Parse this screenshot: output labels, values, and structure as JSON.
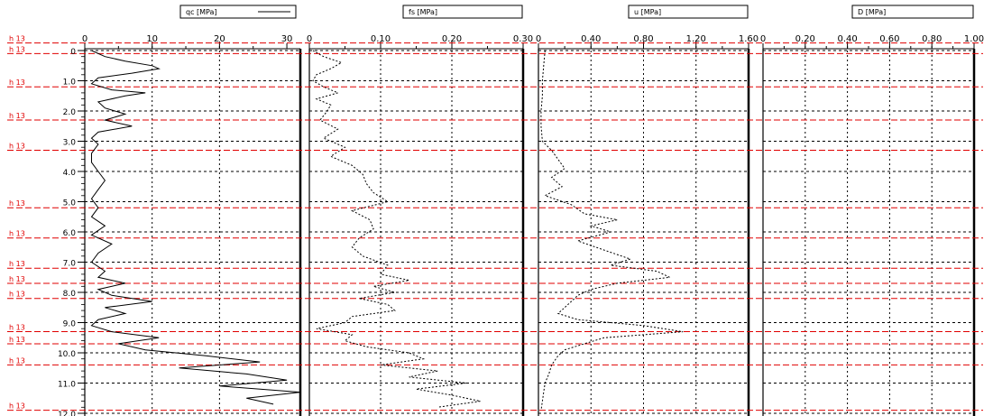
{
  "chart_data": {
    "type": "line",
    "depth_axis": {
      "label": "",
      "range": [
        0,
        12.0
      ],
      "ticks": [
        "0",
        "1.0",
        "2.0",
        "3.0",
        "4.0",
        "5.0",
        "6.0",
        "7.0",
        "8.0",
        "9.0",
        "10.0",
        "11.0",
        "12.0"
      ]
    },
    "grid": true,
    "panels": [
      {
        "name": "qc",
        "legend": "qc [MPa]",
        "xlim": [
          0,
          32
        ],
        "tick_labels": [
          "0",
          "10",
          "20",
          "30"
        ],
        "tick_values": [
          0,
          10,
          20,
          30
        ],
        "series": [
          {
            "depth": [
              0.0,
              0.2,
              0.35,
              0.5,
              0.6,
              0.75,
              0.9,
              1.1,
              1.3,
              1.4,
              1.5,
              1.7,
              1.9,
              2.1,
              2.3,
              2.5,
              2.7,
              2.9,
              3.1,
              3.4,
              3.7,
              4.0,
              4.3,
              4.6,
              4.9,
              5.2,
              5.5,
              5.8,
              6.1,
              6.4,
              6.7,
              7.0,
              7.3,
              7.5,
              7.7,
              7.9,
              8.1,
              8.3,
              8.5,
              8.7,
              8.9,
              9.1,
              9.3,
              9.5,
              9.7,
              9.9,
              10.1,
              10.3,
              10.5,
              10.7,
              10.9,
              11.1,
              11.3,
              11.5,
              11.7
            ],
            "qc": [
              1,
              3,
              6,
              10,
              11,
              7,
              2,
              1,
              4,
              9,
              6,
              2,
              3,
              6,
              3,
              7,
              2,
              1,
              2,
              1,
              1,
              2,
              3,
              2,
              1,
              2,
              1,
              3,
              1,
              4,
              2,
              1,
              3,
              2,
              6,
              2,
              4,
              10,
              3,
              6,
              2,
              1,
              4,
              11,
              5,
              9,
              18,
              26,
              14,
              24,
              30,
              20,
              32,
              24,
              28
            ]
          }
        ]
      },
      {
        "name": "fs",
        "legend": "fs [MPa]",
        "xlim": [
          0,
          0.3
        ],
        "tick_labels": [
          "0",
          "0.10",
          "0.20",
          "0.30"
        ],
        "tick_values": [
          0,
          0.1,
          0.2,
          0.3
        ],
        "series": [
          {
            "depth": [
              0.0,
              0.2,
              0.4,
              0.6,
              0.8,
              1.0,
              1.2,
              1.4,
              1.6,
              1.8,
              2.0,
              2.3,
              2.6,
              2.9,
              3.2,
              3.5,
              3.8,
              4.1,
              4.4,
              4.7,
              5.0,
              5.3,
              5.6,
              5.9,
              6.2,
              6.5,
              6.8,
              7.1,
              7.4,
              7.6,
              7.8,
              8.0,
              8.2,
              8.4,
              8.6,
              8.8,
              9.0,
              9.2,
              9.4,
              9.6,
              9.8,
              10.0,
              10.2,
              10.4,
              10.6,
              10.8,
              11.0,
              11.2,
              11.4,
              11.6,
              11.8
            ],
            "fs": [
              0.005,
              0.02,
              0.045,
              0.03,
              0.01,
              0.005,
              0.02,
              0.04,
              0.01,
              0.03,
              0.025,
              0.015,
              0.04,
              0.02,
              0.05,
              0.03,
              0.06,
              0.075,
              0.08,
              0.09,
              0.11,
              0.06,
              0.085,
              0.09,
              0.07,
              0.06,
              0.075,
              0.11,
              0.1,
              0.14,
              0.09,
              0.12,
              0.07,
              0.11,
              0.12,
              0.06,
              0.05,
              0.01,
              0.06,
              0.05,
              0.08,
              0.14,
              0.16,
              0.1,
              0.18,
              0.14,
              0.22,
              0.15,
              0.2,
              0.24,
              0.18
            ]
          }
        ]
      },
      {
        "name": "u",
        "legend": "u [MPa]",
        "xlim": [
          0,
          1.6
        ],
        "tick_labels": [
          "0",
          "0.40",
          "0.80",
          "1.20",
          "1.60"
        ],
        "tick_values": [
          0,
          0.4,
          0.8,
          1.2,
          1.6
        ],
        "series": [
          {
            "depth": [
              0.0,
              0.5,
              1.0,
              1.5,
              2.0,
              2.5,
              3.0,
              3.3,
              3.6,
              3.9,
              4.2,
              4.5,
              4.8,
              5.1,
              5.4,
              5.6,
              5.8,
              6.0,
              6.3,
              6.6,
              6.9,
              7.1,
              7.3,
              7.5,
              7.7,
              7.9,
              8.1,
              8.3,
              8.5,
              8.7,
              8.9,
              9.1,
              9.3,
              9.5,
              9.7,
              9.9,
              10.1,
              10.4,
              10.7,
              11.0,
              11.3,
              11.6,
              11.9
            ],
            "u": [
              0.05,
              0.04,
              0.03,
              0.03,
              0.02,
              0.02,
              0.03,
              0.1,
              0.15,
              0.2,
              0.1,
              0.18,
              0.05,
              0.25,
              0.35,
              0.6,
              0.4,
              0.55,
              0.3,
              0.5,
              0.7,
              0.55,
              0.9,
              1.0,
              0.6,
              0.4,
              0.3,
              0.25,
              0.2,
              0.15,
              0.3,
              0.8,
              1.1,
              0.5,
              0.35,
              0.2,
              0.15,
              0.1,
              0.08,
              0.05,
              0.04,
              0.03,
              0.02
            ]
          }
        ]
      },
      {
        "name": "D",
        "legend": "D [MPa]",
        "xlim": [
          0,
          1.0
        ],
        "tick_labels": [
          "0",
          "0.20",
          "0.40",
          "0.60",
          "0.80",
          "1.00"
        ],
        "tick_values": [
          0,
          0.2,
          0.4,
          0.6,
          0.8,
          1.0
        ],
        "series": []
      }
    ],
    "red_markers": {
      "label_text": "h 13",
      "depths": [
        -0.25,
        0.1,
        1.2,
        2.3,
        3.3,
        5.2,
        6.2,
        7.2,
        7.7,
        8.2,
        9.3,
        9.7,
        10.4,
        11.9
      ]
    },
    "depth_ticks": [
      0,
      1,
      2,
      3,
      4,
      5,
      6,
      7,
      8,
      9,
      10,
      11,
      12
    ]
  },
  "colors": {
    "curve": "#000000",
    "grid": "#000000",
    "marker": "#e00000"
  }
}
